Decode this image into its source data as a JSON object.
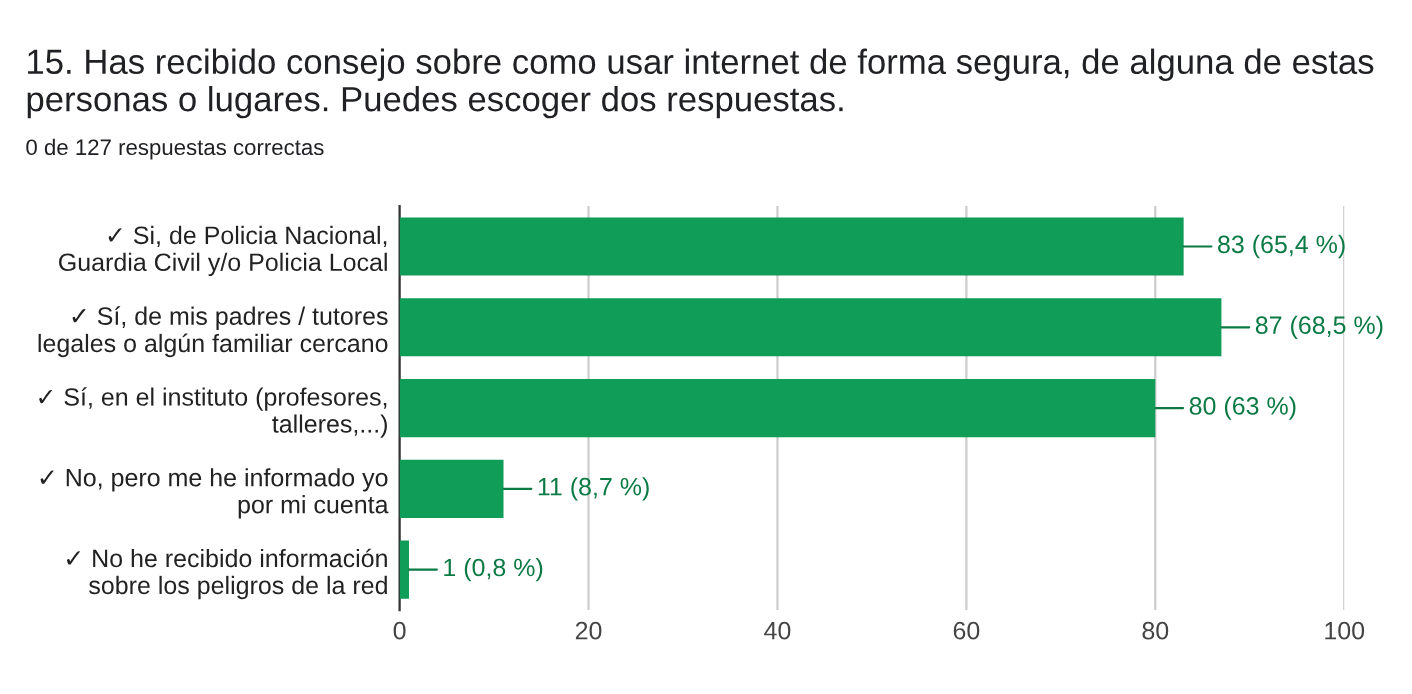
{
  "chart_data": {
    "type": "bar",
    "orientation": "horizontal",
    "title": "15. Has recibido consejo sobre como usar internet de forma segura, de alguna de estas personas o lugares. Puedes escoger dos respuestas.",
    "subtitle": "0 de 127 respuestas correctas",
    "categories": [
      "✓ Si, de Policia Nacional,\nGuardia Civil y/o Policia Local",
      "✓ Sí, de mis padres / tutores\nlegales o algún familiar cercano",
      "✓ Sí, en el instituto (profesores,\ntalleres,...)",
      "✓ No, pero me he informado yo\npor mi cuenta",
      "✓ No he recibido información\nsobre los peligros de la red"
    ],
    "values": [
      83,
      87,
      80,
      11,
      1
    ],
    "value_labels": [
      "83 (65,4 %)",
      "87 (68,5 %)",
      "80 (63 %)",
      "11 (8,7 %)",
      "1 (0,8 %)"
    ],
    "color": "#0f9d58",
    "xlim": [
      0,
      100
    ],
    "xticks": [
      0,
      20,
      40,
      60,
      80,
      100
    ],
    "grid": "x",
    "legend": false
  }
}
